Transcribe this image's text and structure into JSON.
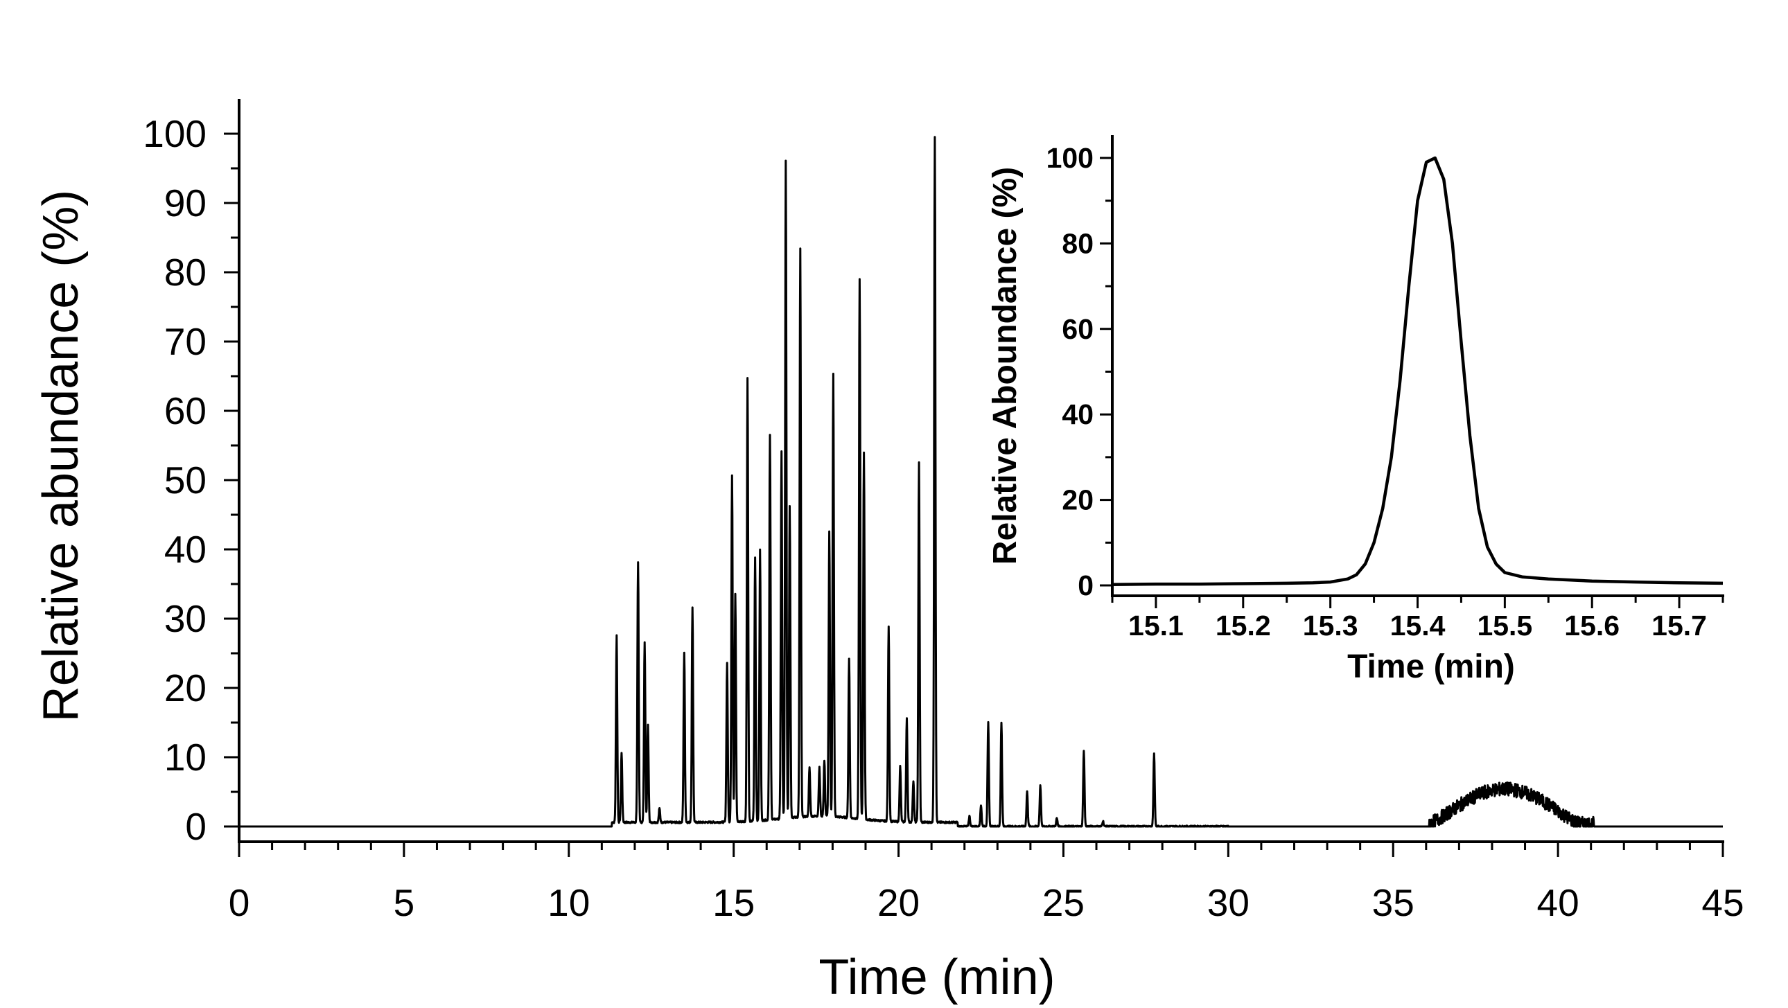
{
  "chart_data": [
    {
      "type": "line",
      "title": "",
      "xlabel": "Time (min)",
      "ylabel": "Relative abundance (%)",
      "xlim": [
        0,
        45
      ],
      "ylim": [
        0,
        100
      ],
      "xticks": [
        0,
        5,
        10,
        15,
        20,
        25,
        30,
        35,
        40,
        45
      ],
      "yticks": [
        0,
        10,
        20,
        30,
        40,
        50,
        60,
        70,
        80,
        90,
        100
      ],
      "xtick_labels": [
        "0",
        "5",
        "10",
        "15",
        "20",
        "25",
        "30",
        "35",
        "40",
        "45"
      ],
      "ytick_labels": [
        "0",
        "10",
        "20",
        "30",
        "40",
        "50",
        "60",
        "70",
        "80",
        "90",
        "100"
      ],
      "grid": false,
      "legend": "none",
      "line_color": "#000000",
      "series": [
        {
          "peaks": [
            {
              "x": 11.45,
              "y": 27
            },
            {
              "x": 11.6,
              "y": 10
            },
            {
              "x": 12.1,
              "y": 37.5
            },
            {
              "x": 12.3,
              "y": 26
            },
            {
              "x": 12.4,
              "y": 14
            },
            {
              "x": 12.75,
              "y": 2
            },
            {
              "x": 13.5,
              "y": 24.5
            },
            {
              "x": 13.75,
              "y": 31
            },
            {
              "x": 14.8,
              "y": 23
            },
            {
              "x": 14.95,
              "y": 50
            },
            {
              "x": 15.05,
              "y": 33
            },
            {
              "x": 15.42,
              "y": 64
            },
            {
              "x": 15.65,
              "y": 38
            },
            {
              "x": 15.8,
              "y": 39
            },
            {
              "x": 16.1,
              "y": 55.5
            },
            {
              "x": 16.45,
              "y": 53
            },
            {
              "x": 16.58,
              "y": 95
            },
            {
              "x": 16.7,
              "y": 45
            },
            {
              "x": 17.02,
              "y": 82
            },
            {
              "x": 17.3,
              "y": 7
            },
            {
              "x": 17.6,
              "y": 7
            },
            {
              "x": 17.75,
              "y": 8
            },
            {
              "x": 17.9,
              "y": 41
            },
            {
              "x": 18.02,
              "y": 64
            },
            {
              "x": 18.5,
              "y": 23
            },
            {
              "x": 18.82,
              "y": 78
            },
            {
              "x": 18.95,
              "y": 53
            },
            {
              "x": 19.7,
              "y": 28
            },
            {
              "x": 20.05,
              "y": 8
            },
            {
              "x": 20.25,
              "y": 15
            },
            {
              "x": 20.45,
              "y": 6
            },
            {
              "x": 20.62,
              "y": 52
            },
            {
              "x": 21.1,
              "y": 99
            },
            {
              "x": 22.15,
              "y": 1.5
            },
            {
              "x": 22.5,
              "y": 3
            },
            {
              "x": 22.72,
              "y": 15
            },
            {
              "x": 23.12,
              "y": 15
            },
            {
              "x": 23.9,
              "y": 5
            },
            {
              "x": 24.3,
              "y": 6
            },
            {
              "x": 24.8,
              "y": 1.2
            },
            {
              "x": 25.62,
              "y": 11
            },
            {
              "x": 26.2,
              "y": 0.8
            },
            {
              "x": 27.75,
              "y": 10.5
            }
          ],
          "hump": {
            "start": 36.1,
            "end": 41.1,
            "max_y": 7.3,
            "max_x": 39.4
          }
        }
      ]
    },
    {
      "type": "line",
      "title": "",
      "xlabel": "Time (min)",
      "ylabel": "Relative Aboundance (%)",
      "xlim": [
        15.05,
        15.75
      ],
      "ylim": [
        -1,
        104
      ],
      "xticks": [
        15.1,
        15.2,
        15.3,
        15.4,
        15.5,
        15.6,
        15.7
      ],
      "yticks": [
        0,
        20,
        40,
        60,
        80,
        100
      ],
      "xtick_labels": [
        "15.1",
        "15.2",
        "15.3",
        "15.4",
        "15.5",
        "15.6",
        "15.7"
      ],
      "ytick_labels": [
        "0",
        "20",
        "40",
        "60",
        "80",
        "100"
      ],
      "grid": false,
      "legend": "none",
      "line_color": "#000000",
      "series": [
        {
          "x": [
            15.05,
            15.1,
            15.15,
            15.2,
            15.25,
            15.28,
            15.3,
            15.32,
            15.33,
            15.34,
            15.35,
            15.36,
            15.37,
            15.38,
            15.39,
            15.4,
            15.41,
            15.42,
            15.43,
            15.44,
            15.45,
            15.46,
            15.47,
            15.48,
            15.49,
            15.5,
            15.52,
            15.55,
            15.6,
            15.65,
            15.7,
            15.75
          ],
          "y": [
            0.2,
            0.3,
            0.3,
            0.4,
            0.5,
            0.6,
            0.8,
            1.5,
            2.5,
            5,
            10,
            18,
            30,
            48,
            70,
            90,
            99,
            100,
            95,
            80,
            57,
            35,
            18,
            9,
            5,
            3,
            2,
            1.5,
            1,
            0.8,
            0.6,
            0.5
          ]
        }
      ]
    }
  ]
}
